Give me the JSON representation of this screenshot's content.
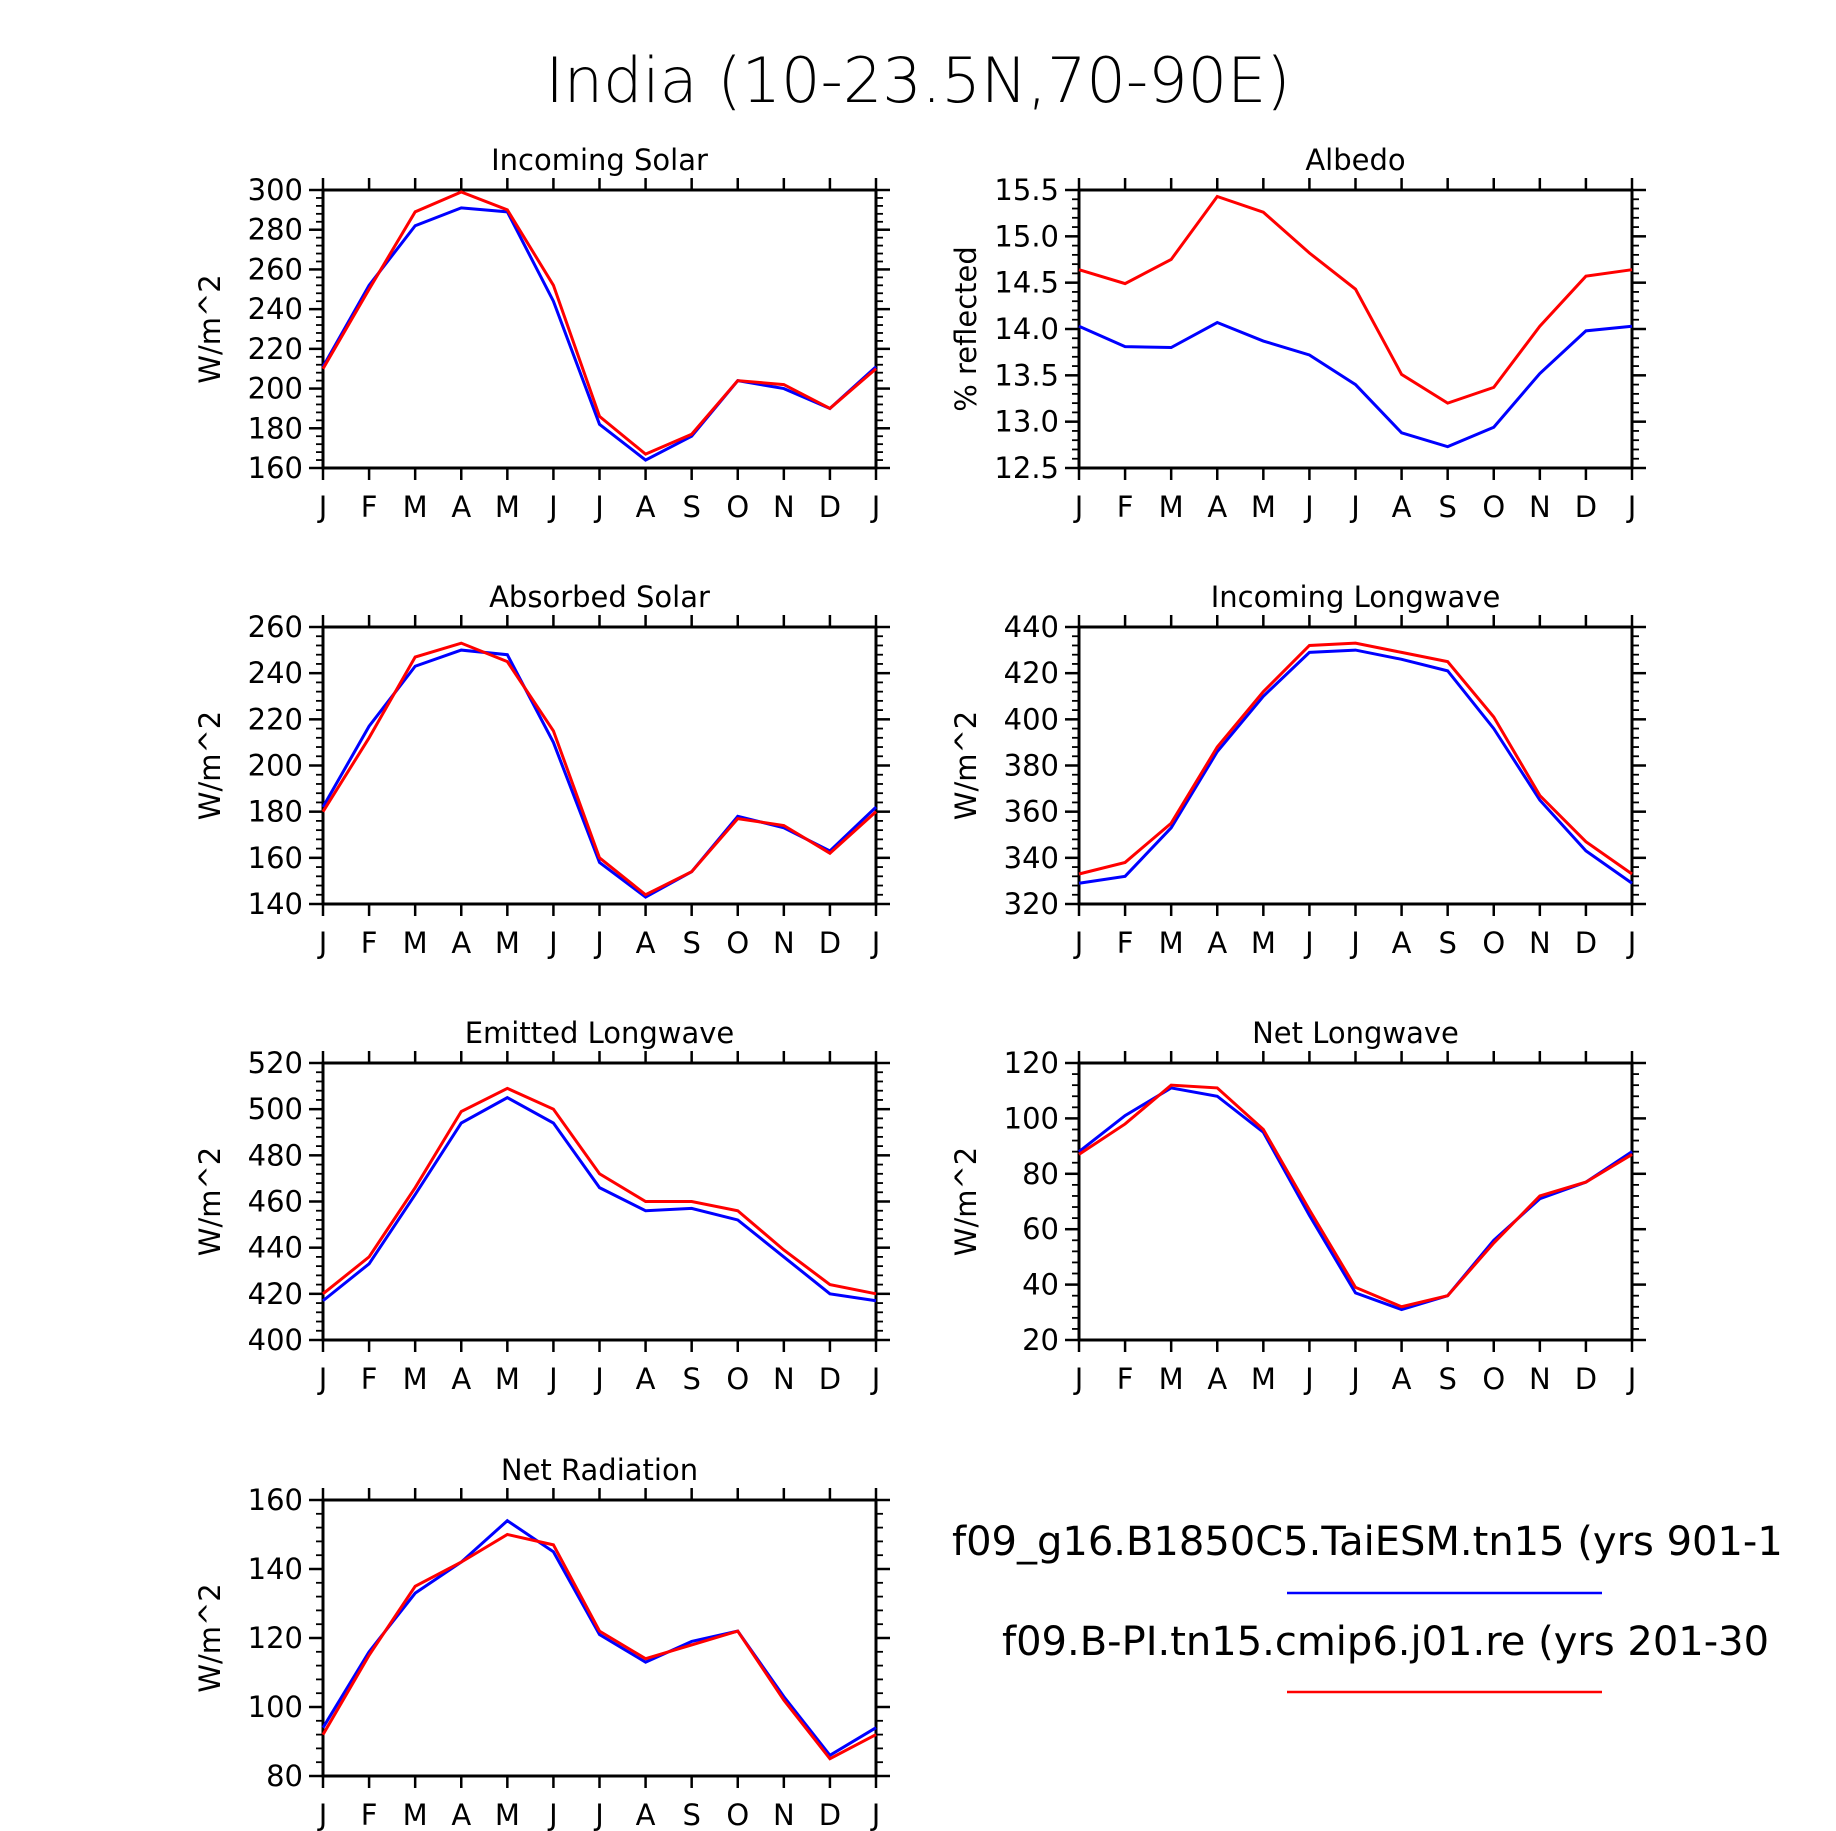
{
  "title": "India (10-23.5N,70-90E)",
  "legend": [
    {
      "label": "f09_g16.B1850C5.TaiESM.tn15 (yrs 901-1",
      "color": "#0000ff"
    },
    {
      "label": "f09.B-PI.tn15.cmip6.j01.re (yrs 201-30",
      "color": "#ff0000"
    }
  ],
  "chart_data": [
    {
      "type": "line",
      "title": "Incoming Solar",
      "ylabel": "W/m^2",
      "categories": [
        "J",
        "F",
        "M",
        "A",
        "M",
        "J",
        "J",
        "A",
        "S",
        "O",
        "N",
        "D",
        "J"
      ],
      "ylim": [
        160,
        300
      ],
      "yticks": [
        160,
        180,
        200,
        220,
        240,
        260,
        280,
        300
      ],
      "ytick_labels": [
        "160",
        "180",
        "200",
        "220",
        "240",
        "260",
        "280",
        "300"
      ],
      "series": [
        {
          "color": "#0000ff",
          "values": [
            211,
            252,
            282,
            291,
            289,
            244,
            182,
            164,
            176,
            204,
            200,
            190,
            211
          ]
        },
        {
          "color": "#ff0000",
          "values": [
            210,
            250,
            289,
            299,
            290,
            252,
            186,
            167,
            177,
            204,
            202,
            190,
            210
          ]
        }
      ]
    },
    {
      "type": "line",
      "title": "Albedo",
      "ylabel": "% reflected",
      "categories": [
        "J",
        "F",
        "M",
        "A",
        "M",
        "J",
        "J",
        "A",
        "S",
        "O",
        "N",
        "D",
        "J"
      ],
      "ylim": [
        12.5,
        15.5
      ],
      "yticks": [
        12.5,
        13.0,
        13.5,
        14.0,
        14.5,
        15.0,
        15.5
      ],
      "ytick_labels": [
        "12.5",
        "13.0",
        "13.5",
        "14.0",
        "14.5",
        "15.0",
        "15.5"
      ],
      "series": [
        {
          "color": "#0000ff",
          "values": [
            14.03,
            13.81,
            13.8,
            14.07,
            13.87,
            13.72,
            13.4,
            12.88,
            12.73,
            12.94,
            13.52,
            13.98,
            14.03
          ]
        },
        {
          "color": "#ff0000",
          "values": [
            14.64,
            14.49,
            14.75,
            15.43,
            15.26,
            14.82,
            14.43,
            13.51,
            13.2,
            13.37,
            14.03,
            14.57,
            14.64
          ]
        }
      ]
    },
    {
      "type": "line",
      "title": "Absorbed Solar",
      "ylabel": "W/m^2",
      "categories": [
        "J",
        "F",
        "M",
        "A",
        "M",
        "J",
        "J",
        "A",
        "S",
        "O",
        "N",
        "D",
        "J"
      ],
      "ylim": [
        140,
        260
      ],
      "yticks": [
        140,
        160,
        180,
        200,
        220,
        240,
        260
      ],
      "ytick_labels": [
        "140",
        "160",
        "180",
        "200",
        "220",
        "240",
        "260"
      ],
      "series": [
        {
          "color": "#0000ff",
          "values": [
            182,
            217,
            243,
            250,
            248,
            210,
            158,
            143,
            154,
            178,
            173,
            163,
            182
          ]
        },
        {
          "color": "#ff0000",
          "values": [
            180,
            212,
            247,
            253,
            245,
            215,
            160,
            144,
            154,
            177,
            174,
            162,
            180
          ]
        }
      ]
    },
    {
      "type": "line",
      "title": "Incoming Longwave",
      "ylabel": "W/m^2",
      "categories": [
        "J",
        "F",
        "M",
        "A",
        "M",
        "J",
        "J",
        "A",
        "S",
        "O",
        "N",
        "D",
        "J"
      ],
      "ylim": [
        320,
        440
      ],
      "yticks": [
        320,
        340,
        360,
        380,
        400,
        420,
        440
      ],
      "ytick_labels": [
        "320",
        "340",
        "360",
        "380",
        "400",
        "420",
        "440"
      ],
      "series": [
        {
          "color": "#0000ff",
          "values": [
            329,
            332,
            353,
            386,
            410,
            429,
            430,
            426,
            421,
            396,
            365,
            343,
            329
          ]
        },
        {
          "color": "#ff0000",
          "values": [
            333,
            338,
            355,
            388,
            412,
            432,
            433,
            429,
            425,
            401,
            367,
            347,
            333
          ]
        }
      ]
    },
    {
      "type": "line",
      "title": "Emitted Longwave",
      "ylabel": "W/m^2",
      "categories": [
        "J",
        "F",
        "M",
        "A",
        "M",
        "J",
        "J",
        "A",
        "S",
        "O",
        "N",
        "D",
        "J"
      ],
      "ylim": [
        400,
        520
      ],
      "yticks": [
        400,
        420,
        440,
        460,
        480,
        500,
        520
      ],
      "ytick_labels": [
        "400",
        "420",
        "440",
        "460",
        "480",
        "500",
        "520"
      ],
      "series": [
        {
          "color": "#0000ff",
          "values": [
            417,
            433,
            463,
            494,
            505,
            494,
            466,
            456,
            457,
            452,
            436,
            420,
            417
          ]
        },
        {
          "color": "#ff0000",
          "values": [
            420,
            436,
            466,
            499,
            509,
            500,
            472,
            460,
            460,
            456,
            439,
            424,
            420
          ]
        }
      ]
    },
    {
      "type": "line",
      "title": "Net Longwave",
      "ylabel": "W/m^2",
      "categories": [
        "J",
        "F",
        "M",
        "A",
        "M",
        "J",
        "J",
        "A",
        "S",
        "O",
        "N",
        "D",
        "J"
      ],
      "ylim": [
        20,
        120
      ],
      "yticks": [
        20,
        40,
        60,
        80,
        100,
        120
      ],
      "ytick_labels": [
        "20",
        "40",
        "60",
        "80",
        "100",
        "120"
      ],
      "series": [
        {
          "color": "#0000ff",
          "values": [
            88,
            101,
            111,
            108,
            95,
            65,
            37,
            31,
            36,
            56,
            71,
            77,
            88
          ]
        },
        {
          "color": "#ff0000",
          "values": [
            87,
            98,
            112,
            111,
            96,
            67,
            39,
            32,
            36,
            55,
            72,
            77,
            87
          ]
        }
      ]
    },
    {
      "type": "line",
      "title": "Net Radiation",
      "ylabel": "W/m^2",
      "categories": [
        "J",
        "F",
        "M",
        "A",
        "M",
        "J",
        "J",
        "A",
        "S",
        "O",
        "N",
        "D",
        "J"
      ],
      "ylim": [
        80,
        160
      ],
      "yticks": [
        80,
        100,
        120,
        140,
        160
      ],
      "ytick_labels": [
        "80",
        "100",
        "120",
        "140",
        "160"
      ],
      "series": [
        {
          "color": "#0000ff",
          "values": [
            94,
            116,
            133,
            142,
            154,
            145,
            121,
            113,
            119,
            122,
            103,
            86,
            94
          ]
        },
        {
          "color": "#ff0000",
          "values": [
            92,
            115,
            135,
            142,
            150,
            147,
            122,
            114,
            118,
            122,
            102,
            85,
            92
          ]
        }
      ]
    }
  ]
}
